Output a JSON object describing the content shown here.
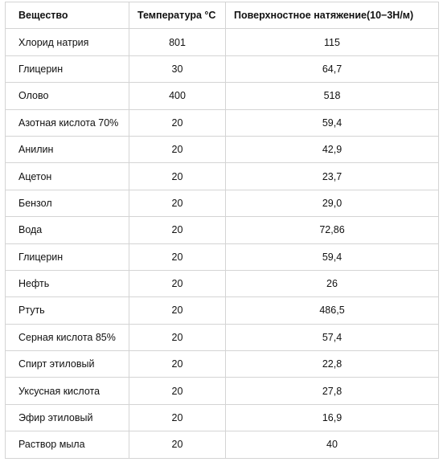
{
  "table": {
    "header": [
      "Вещество",
      "Температура °С",
      "Поверхностное натяжение(10−3Н/м)"
    ],
    "rows": [
      [
        "Хлорид натрия",
        "801",
        "115"
      ],
      [
        "Глицерин",
        "30",
        "64,7"
      ],
      [
        "Олово",
        "400",
        "518"
      ],
      [
        "Азотная кислота 70%",
        "20",
        "59,4"
      ],
      [
        "Анилин",
        "20",
        "42,9"
      ],
      [
        "Ацетон",
        "20",
        "23,7"
      ],
      [
        "Бензол",
        "20",
        "29,0"
      ],
      [
        "Вода",
        "20",
        "72,86"
      ],
      [
        "Глицерин",
        "20",
        "59,4"
      ],
      [
        "Нефть",
        "20",
        "26"
      ],
      [
        "Ртуть",
        "20",
        "486,5"
      ],
      [
        "Серная кислота 85%",
        "20",
        "57,4"
      ],
      [
        "Спирт этиловый",
        "20",
        "22,8"
      ],
      [
        "Уксусная кислота",
        "20",
        "27,8"
      ],
      [
        "Эфир этиловый",
        "20",
        "16,9"
      ],
      [
        "Раствор мыла",
        "20",
        "40"
      ]
    ]
  }
}
